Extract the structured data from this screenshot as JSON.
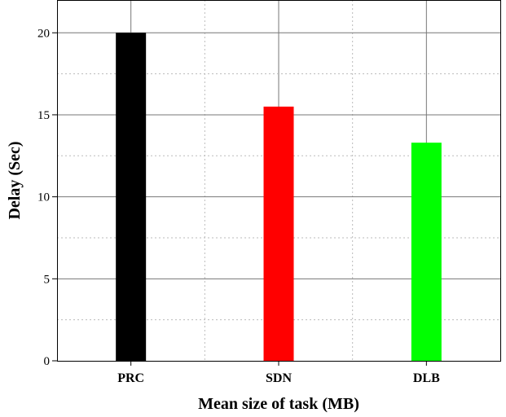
{
  "chart_data": {
    "type": "bar",
    "title": "",
    "xlabel": "Mean size of task (MB)",
    "ylabel": "Delay (Sec)",
    "categories": [
      "PRC",
      "SDN",
      "DLB"
    ],
    "values": [
      20,
      15.5,
      13.3
    ],
    "colors": [
      "#000000",
      "#ff0000",
      "#00ff00"
    ],
    "ylim": [
      0,
      22
    ],
    "yticks": [
      0,
      5,
      10,
      15,
      20
    ],
    "grid": true,
    "legend": "none"
  }
}
